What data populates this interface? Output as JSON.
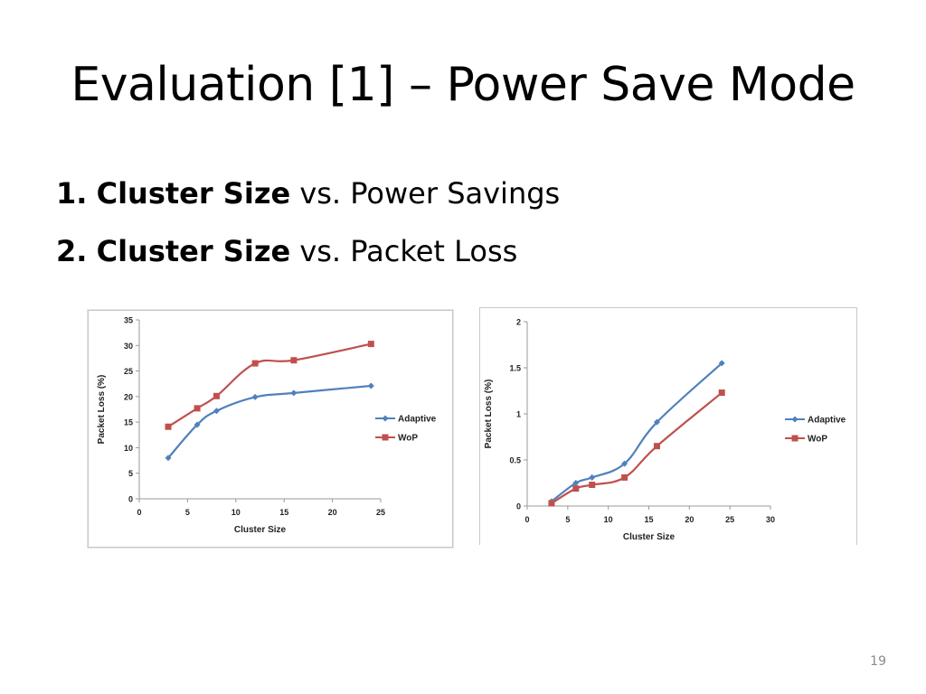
{
  "slide": {
    "title": "Evaluation [1] – Power Save Mode",
    "bullets": [
      {
        "number": "1.",
        "bold": "Cluster Size",
        "rest": " vs. Power Savings"
      },
      {
        "number": "2.",
        "bold": "Cluster Size",
        "rest": " vs. Packet Loss"
      }
    ],
    "slide_number": "19"
  },
  "colors": {
    "adaptive": "#4F81BD",
    "wop": "#C0504D",
    "axis": "#a0a0a0",
    "text": "#222222"
  },
  "chart_data": [
    {
      "type": "line",
      "title": "",
      "xlabel": "Cluster Size",
      "ylabel": "Packet Loss (%)",
      "xlim": [
        0,
        25
      ],
      "ylim": [
        0,
        35
      ],
      "xticks": [
        0,
        5,
        10,
        15,
        20,
        25
      ],
      "yticks": [
        0,
        5,
        10,
        15,
        20,
        25,
        30,
        35
      ],
      "grid": false,
      "legend": "right",
      "series": [
        {
          "name": "Adaptive",
          "marker": "diamond",
          "x": [
            3,
            6,
            8,
            12,
            16,
            24
          ],
          "values": [
            8.0,
            14.5,
            17.2,
            19.9,
            20.7,
            22.1
          ]
        },
        {
          "name": "WoP",
          "marker": "square",
          "x": [
            3,
            6,
            8,
            12,
            16,
            24
          ],
          "values": [
            14.1,
            17.7,
            20.1,
            26.5,
            27.1,
            30.3
          ]
        }
      ]
    },
    {
      "type": "line",
      "title": "",
      "xlabel": "Cluster Size",
      "ylabel": "Packet Loss (%)",
      "xlim": [
        0,
        30
      ],
      "ylim": [
        0,
        2
      ],
      "xticks": [
        0,
        5,
        10,
        15,
        20,
        25,
        30
      ],
      "yticks": [
        0,
        0.5,
        1,
        1.5,
        2
      ],
      "ytick_labels": [
        "0",
        "0.5",
        "1",
        "1.5",
        "2"
      ],
      "grid": false,
      "legend": "right",
      "series": [
        {
          "name": "Adaptive",
          "marker": "diamond",
          "x": [
            3,
            6,
            8,
            12,
            16,
            24
          ],
          "values": [
            0.05,
            0.25,
            0.31,
            0.46,
            0.91,
            1.55
          ]
        },
        {
          "name": "WoP",
          "marker": "square",
          "x": [
            3,
            6,
            8,
            12,
            16,
            24
          ],
          "values": [
            0.03,
            0.19,
            0.23,
            0.31,
            0.65,
            1.23
          ]
        }
      ]
    }
  ]
}
